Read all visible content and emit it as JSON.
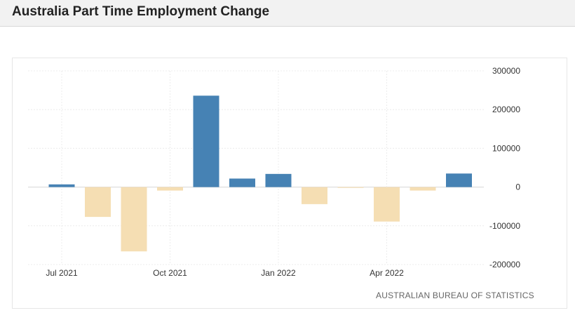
{
  "header": {
    "title": "Australia Part Time Employment Change"
  },
  "source": "AUSTRALIAN BUREAU OF STATISTICS",
  "chart_data": {
    "type": "bar",
    "title": "Australia Part Time Employment Change",
    "xlabel": "",
    "ylabel": "",
    "categories": [
      "2021-07",
      "2021-08",
      "2021-09",
      "2021-10",
      "2021-11",
      "2021-12",
      "2022-01",
      "2022-02",
      "2022-03",
      "2022-04",
      "2022-05",
      "2022-06"
    ],
    "values": [
      7000,
      -77000,
      -166000,
      -9000,
      236000,
      22000,
      34000,
      -44000,
      -2000,
      -89000,
      -9000,
      35000
    ],
    "x_tick_labels": [
      {
        "category": "2021-07",
        "label": "Jul 2021"
      },
      {
        "category": "2021-10",
        "label": "Oct 2021"
      },
      {
        "category": "2022-01",
        "label": "Jan 2022"
      },
      {
        "category": "2022-04",
        "label": "Apr 2022"
      }
    ],
    "y_ticks": [
      300000,
      200000,
      100000,
      0,
      -100000,
      -200000
    ],
    "y_tick_labels": [
      "300000",
      "200000",
      "100000",
      "0",
      "-100000",
      "-200000"
    ],
    "ylim": [
      -200000,
      300000
    ],
    "y_axis_position": "right",
    "grid": true,
    "legend": "none",
    "colors": {
      "positive": "#4682b4",
      "negative": "#f5deb3",
      "grid": "#ececec",
      "zero_line": "#d6d6d6",
      "tick_text": "#333333"
    }
  }
}
